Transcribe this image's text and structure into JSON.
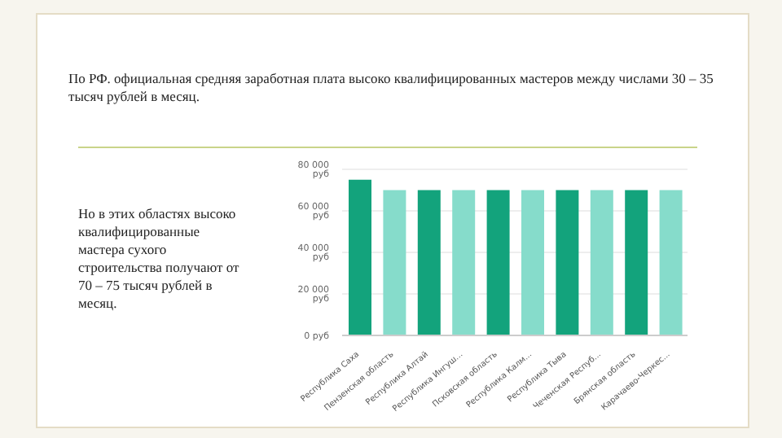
{
  "chart_data": {
    "type": "bar",
    "title": "По РФ. официальная средняя заработная плата высоко квалифицированных мастеров между числами 30 – 35 тысяч рублей в месяц.",
    "annotations": [
      "Но в этих областях высоко квалифицированные мастера сухого строительства получают от 70 – 75 тысяч рублей в месяц."
    ],
    "categories": [
      "Республика Саха",
      "Пензенская область",
      "Республика Алтай",
      "Республика Ингуш...",
      "Псковская область",
      "Республика Калм...",
      "Республика Тыва",
      "Чеченская Респуб...",
      "Брянская область",
      "Карачаево-Черкес..."
    ],
    "values": [
      75000,
      70000,
      70000,
      70000,
      70000,
      70000,
      70000,
      70000,
      70000,
      70000
    ],
    "colors": [
      "#13a37c",
      "#86dccb",
      "#13a37c",
      "#86dccb",
      "#13a37c",
      "#86dccb",
      "#13a37c",
      "#86dccb",
      "#13a37c",
      "#86dccb"
    ],
    "ylim": [
      0,
      80000
    ],
    "yticks": [
      {
        "value": 0,
        "label": "0 руб"
      },
      {
        "value": 20000,
        "label": "20 000 руб"
      },
      {
        "value": 40000,
        "label": "40 000 руб"
      },
      {
        "value": 60000,
        "label": "60 000 руб"
      },
      {
        "value": 80000,
        "label": "80 000 руб"
      }
    ],
    "grid": "y"
  }
}
